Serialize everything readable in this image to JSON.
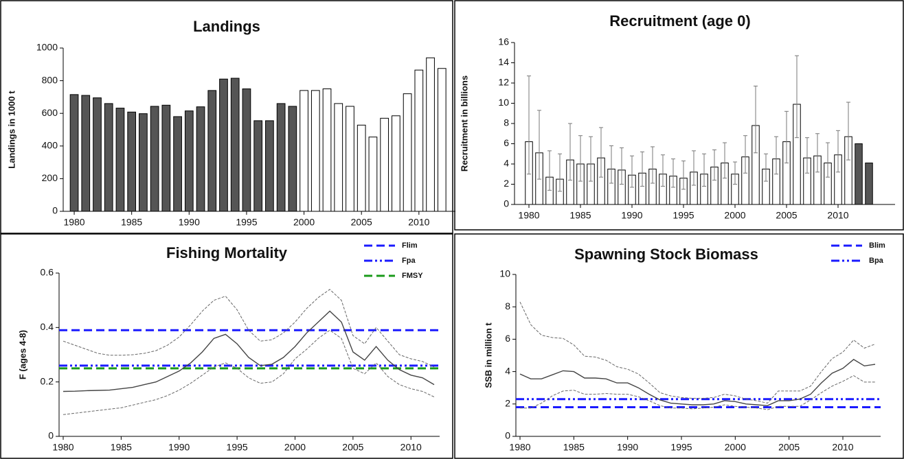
{
  "chart_data": [
    {
      "type": "bar",
      "title": "Landings",
      "ylabel": "Landings in 1000 t",
      "x": [
        1980,
        1981,
        1982,
        1983,
        1984,
        1985,
        1986,
        1987,
        1988,
        1989,
        1990,
        1991,
        1992,
        1993,
        1994,
        1995,
        1996,
        1997,
        1998,
        1999,
        2000,
        2001,
        2002,
        2003,
        2004,
        2005,
        2006,
        2007,
        2008,
        2009,
        2010,
        2011,
        2012
      ],
      "values": [
        715,
        710,
        695,
        660,
        632,
        608,
        598,
        643,
        650,
        580,
        615,
        640,
        740,
        810,
        815,
        750,
        555,
        555,
        660,
        643,
        740,
        740,
        750,
        660,
        643,
        528,
        455,
        570,
        585,
        720,
        865,
        940,
        875
      ],
      "bar_colors": [
        "#555555",
        "#555555",
        "#555555",
        "#555555",
        "#555555",
        "#555555",
        "#555555",
        "#555555",
        "#555555",
        "#555555",
        "#555555",
        "#555555",
        "#555555",
        "#555555",
        "#555555",
        "#555555",
        "#555555",
        "#555555",
        "#555555",
        "#555555",
        "#ffffff",
        "#ffffff",
        "#ffffff",
        "#ffffff",
        "#ffffff",
        "#ffffff",
        "#ffffff",
        "#ffffff",
        "#ffffff",
        "#ffffff",
        "#ffffff",
        "#ffffff",
        "#ffffff"
      ],
      "xlim": [
        1979.4,
        2012.7
      ],
      "xticks": [
        1980,
        1985,
        1990,
        1995,
        2000,
        2005,
        2010
      ],
      "ylim": [
        0,
        1000
      ],
      "yticks": [
        0,
        200,
        400,
        600,
        800,
        1000
      ]
    },
    {
      "type": "bar",
      "title": "Recruitment (age 0)",
      "ylabel": "Recruitment in billions",
      "x": [
        1980,
        1981,
        1982,
        1983,
        1984,
        1985,
        1986,
        1987,
        1988,
        1989,
        1990,
        1991,
        1992,
        1993,
        1994,
        1995,
        1996,
        1997,
        1998,
        1999,
        2000,
        2001,
        2002,
        2003,
        2004,
        2005,
        2006,
        2007,
        2008,
        2009,
        2010,
        2011,
        2012,
        2013
      ],
      "values": [
        6.2,
        5.1,
        2.7,
        2.5,
        4.4,
        4.0,
        4.0,
        4.6,
        3.5,
        3.4,
        2.9,
        3.1,
        3.5,
        3.0,
        2.8,
        2.6,
        3.2,
        3.0,
        3.7,
        4.1,
        3.0,
        4.7,
        7.8,
        3.5,
        4.5,
        6.2,
        9.9,
        4.6,
        4.8,
        4.1,
        4.9,
        6.7,
        6.0,
        4.1
      ],
      "upper": [
        12.7,
        9.3,
        5.3,
        5.0,
        8.0,
        6.8,
        6.7,
        7.6,
        5.8,
        5.6,
        4.8,
        5.2,
        5.7,
        4.9,
        4.5,
        4.3,
        5.3,
        5.0,
        5.4,
        6.1,
        4.2,
        6.8,
        11.7,
        5.0,
        6.7,
        9.2,
        14.7,
        6.6,
        7.0,
        6.1,
        7.3,
        10.1,
        null,
        null
      ],
      "lower": [
        3.0,
        2.5,
        1.4,
        1.3,
        2.4,
        2.3,
        2.3,
        2.7,
        2.1,
        2.0,
        1.7,
        1.8,
        2.1,
        1.8,
        1.7,
        1.5,
        1.9,
        1.8,
        2.4,
        2.6,
        2.0,
        3.1,
        5.1,
        2.3,
        3.0,
        4.1,
        6.6,
        3.1,
        3.2,
        2.7,
        3.2,
        4.4,
        null,
        null
      ],
      "bar_colors": [
        "#ffffff",
        "#ffffff",
        "#ffffff",
        "#ffffff",
        "#ffffff",
        "#ffffff",
        "#ffffff",
        "#ffffff",
        "#ffffff",
        "#ffffff",
        "#ffffff",
        "#ffffff",
        "#ffffff",
        "#ffffff",
        "#ffffff",
        "#ffffff",
        "#ffffff",
        "#ffffff",
        "#ffffff",
        "#ffffff",
        "#ffffff",
        "#ffffff",
        "#ffffff",
        "#ffffff",
        "#ffffff",
        "#ffffff",
        "#ffffff",
        "#ffffff",
        "#ffffff",
        "#ffffff",
        "#ffffff",
        "#ffffff",
        "#555555",
        "#555555"
      ],
      "xlim": [
        1979,
        2015
      ],
      "xticks": [
        1980,
        1985,
        1990,
        1995,
        2000,
        2005,
        2010
      ],
      "ylim": [
        0,
        16
      ],
      "yticks": [
        0,
        2,
        4,
        6,
        8,
        10,
        12,
        14,
        16
      ]
    },
    {
      "type": "line",
      "title": "Fishing Mortality",
      "ylabel": "F (ages 4-8)",
      "x": [
        1980,
        1981,
        1982,
        1983,
        1984,
        1985,
        1986,
        1987,
        1988,
        1989,
        1990,
        1991,
        1992,
        1993,
        1994,
        1995,
        1996,
        1997,
        1998,
        1999,
        2000,
        2001,
        2002,
        2003,
        2004,
        2005,
        2006,
        2007,
        2008,
        2009,
        2010,
        2011,
        2012
      ],
      "series": [
        {
          "color": "#444444",
          "style": "solid",
          "values": [
            0.165,
            0.166,
            0.168,
            0.169,
            0.17,
            0.175,
            0.18,
            0.19,
            0.2,
            0.22,
            0.24,
            0.27,
            0.31,
            0.36,
            0.375,
            0.34,
            0.29,
            0.26,
            0.265,
            0.29,
            0.33,
            0.38,
            0.42,
            0.46,
            0.42,
            0.31,
            0.28,
            0.33,
            0.28,
            0.245,
            0.225,
            0.215,
            0.19
          ]
        },
        {
          "color": "#666666",
          "style": "dashed",
          "values": [
            0.35,
            0.335,
            0.32,
            0.305,
            0.298,
            0.298,
            0.3,
            0.305,
            0.315,
            0.335,
            0.365,
            0.41,
            0.46,
            0.5,
            0.515,
            0.465,
            0.39,
            0.35,
            0.355,
            0.38,
            0.42,
            0.47,
            0.51,
            0.54,
            0.5,
            0.37,
            0.34,
            0.4,
            0.35,
            0.3,
            0.285,
            0.275,
            0.255
          ]
        },
        {
          "color": "#666666",
          "style": "dashed",
          "values": [
            0.08,
            0.085,
            0.09,
            0.095,
            0.1,
            0.105,
            0.115,
            0.125,
            0.135,
            0.15,
            0.17,
            0.195,
            0.225,
            0.255,
            0.27,
            0.25,
            0.215,
            0.195,
            0.2,
            0.23,
            0.285,
            0.32,
            0.36,
            0.39,
            0.36,
            0.25,
            0.23,
            0.27,
            0.22,
            0.19,
            0.175,
            0.165,
            0.145
          ]
        }
      ],
      "hlines": [
        {
          "name": "Flim",
          "value": 0.39,
          "color": "#1a1aff",
          "style": "dashed"
        },
        {
          "name": "Fpa",
          "value": 0.26,
          "color": "#1a1aff",
          "style": "dash-dot-dot"
        },
        {
          "name": "FMSY",
          "value": 0.25,
          "color": "#1a9a1a",
          "style": "dashed"
        }
      ],
      "legend": "top right",
      "xlim": [
        1980,
        2012
      ],
      "xticks": [
        1980,
        1985,
        1990,
        1995,
        2000,
        2005,
        2010
      ],
      "ylim": [
        0,
        0.6
      ],
      "yticks": [
        0,
        0.2,
        0.4,
        0.6
      ]
    },
    {
      "type": "line",
      "title": "Spawning Stock Biomass",
      "ylabel": "SSB in million t",
      "x": [
        1980,
        1981,
        1982,
        1983,
        1984,
        1985,
        1986,
        1987,
        1988,
        1989,
        1990,
        1991,
        1992,
        1993,
        1994,
        1995,
        1996,
        1997,
        1998,
        1999,
        2000,
        2001,
        2002,
        2003,
        2004,
        2005,
        2006,
        2007,
        2008,
        2009,
        2010,
        2011,
        2012,
        2013
      ],
      "series": [
        {
          "color": "#444444",
          "style": "solid",
          "values": [
            3.85,
            3.55,
            3.55,
            3.8,
            4.05,
            4.0,
            3.6,
            3.6,
            3.55,
            3.3,
            3.3,
            3.0,
            2.6,
            2.25,
            2.05,
            2.0,
            1.95,
            1.95,
            2.0,
            2.2,
            2.15,
            2.0,
            1.95,
            1.9,
            2.2,
            2.2,
            2.3,
            2.6,
            3.3,
            3.9,
            4.2,
            4.75,
            4.35,
            4.45
          ]
        },
        {
          "color": "#666666",
          "style": "dashed",
          "values": [
            8.3,
            6.9,
            6.25,
            6.1,
            6.05,
            5.65,
            4.95,
            4.9,
            4.7,
            4.3,
            4.15,
            3.85,
            3.3,
            2.7,
            2.5,
            2.4,
            2.35,
            2.35,
            2.4,
            2.6,
            2.5,
            2.3,
            2.2,
            2.05,
            2.8,
            2.8,
            2.8,
            3.1,
            4.0,
            4.8,
            5.2,
            5.95,
            5.45,
            5.7
          ]
        },
        {
          "color": "#666666",
          "style": "dashed",
          "values": [
            1.75,
            1.75,
            2.05,
            2.5,
            2.8,
            2.85,
            2.6,
            2.6,
            2.65,
            2.6,
            2.6,
            2.45,
            2.2,
            1.9,
            1.75,
            1.75,
            1.7,
            1.75,
            1.8,
            1.95,
            1.85,
            1.8,
            1.75,
            1.65,
            1.85,
            1.85,
            1.85,
            2.25,
            2.7,
            3.1,
            3.4,
            3.75,
            3.35,
            3.35
          ]
        }
      ],
      "hlines": [
        {
          "name": "Blim",
          "value": 1.8,
          "color": "#1a1aff",
          "style": "dashed"
        },
        {
          "name": "Bpa",
          "value": 2.3,
          "color": "#1a1aff",
          "style": "dash-dot-dot"
        }
      ],
      "legend": "top right",
      "xlim": [
        1980,
        2013
      ],
      "xticks": [
        1980,
        1985,
        1990,
        1995,
        2000,
        2005,
        2010
      ],
      "ylim": [
        0,
        10
      ],
      "yticks": [
        0,
        2,
        4,
        6,
        8,
        10
      ]
    }
  ]
}
